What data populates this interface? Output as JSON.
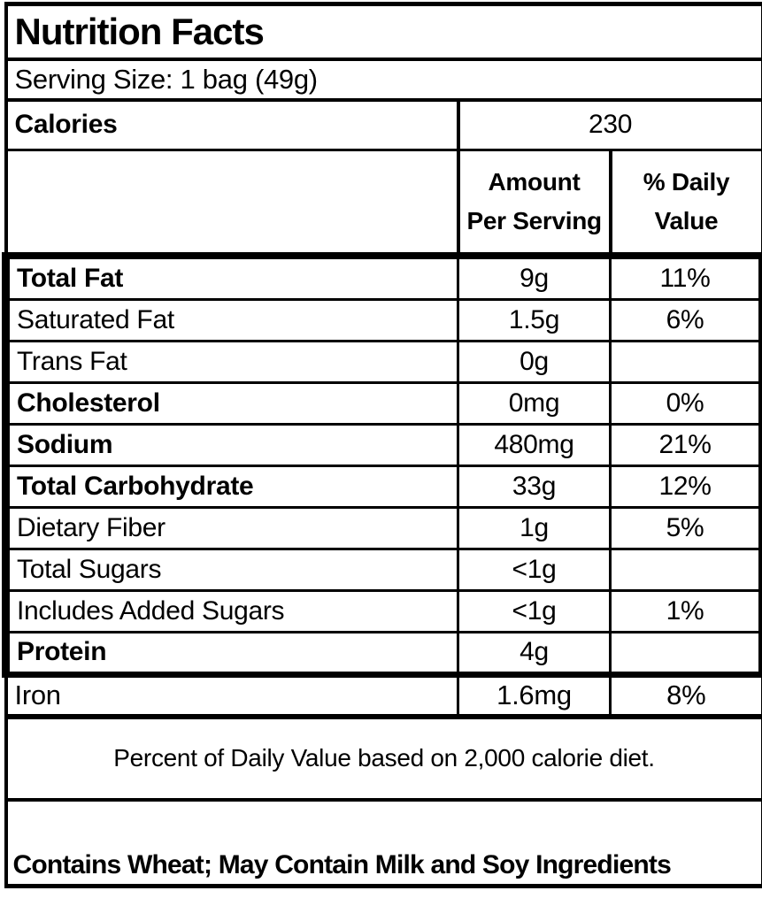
{
  "label": {
    "title": "Nutrition Facts",
    "serving_size": "Serving Size: 1 bag (49g)",
    "calories": {
      "label": "Calories",
      "value": "230"
    },
    "columns": {
      "amount_line1": "Amount",
      "amount_line2": "Per Serving",
      "dv_line1": "% Daily",
      "dv_line2": "Value"
    },
    "rows": [
      {
        "label": "Total Fat",
        "amount": "9g",
        "dv": "11%"
      },
      {
        "label": "Saturated Fat",
        "amount": "1.5g",
        "dv": "6%"
      },
      {
        "label": "Trans Fat",
        "amount": "0g",
        "dv": ""
      },
      {
        "label": "Cholesterol",
        "amount": "0mg",
        "dv": "0%"
      },
      {
        "label": "Sodium",
        "amount": "480mg",
        "dv": "21%"
      },
      {
        "label": "Total Carbohydrate",
        "amount": "33g",
        "dv": "12%"
      },
      {
        "label": "Dietary Fiber",
        "amount": "1g",
        "dv": "5%"
      },
      {
        "label": "Total Sugars",
        "amount": "<1g",
        "dv": ""
      },
      {
        "label": "Includes Added Sugars",
        "amount": "<1g",
        "dv": "1%"
      },
      {
        "label": "Protein",
        "amount": "4g",
        "dv": ""
      },
      {
        "label": "Iron",
        "amount": "1.6mg",
        "dv": "8%"
      }
    ],
    "footnote": "Percent of Daily Value based on 2,000 calorie diet.",
    "allergen": "Contains Wheat; May Contain Milk and Soy Ingredients",
    "colors": {
      "border": "#000000",
      "background": "#ffffff",
      "text": "#000000"
    }
  }
}
